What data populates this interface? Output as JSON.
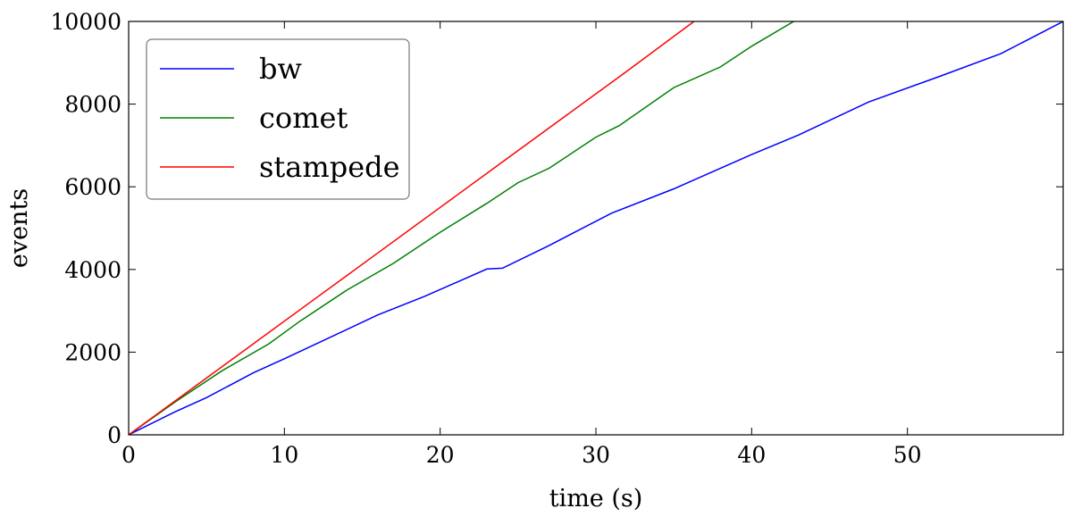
{
  "chart_data": {
    "type": "line",
    "title": "",
    "xlabel": "time (s)",
    "ylabel": "events",
    "xlim": [
      0,
      60
    ],
    "ylim": [
      0,
      10000
    ],
    "xticks": [
      0,
      10,
      20,
      30,
      40,
      50
    ],
    "xtick_labels": [
      "0",
      "10",
      "20",
      "30",
      "40",
      "50"
    ],
    "yticks": [
      0,
      2000,
      4000,
      6000,
      8000,
      10000
    ],
    "ytick_labels": [
      "0",
      "2000",
      "4000",
      "6000",
      "8000",
      "10000"
    ],
    "grid": false,
    "legend_position": "top-left",
    "series": [
      {
        "name": "bw",
        "color": "#0000ff",
        "x": [
          0,
          3,
          5,
          8,
          10,
          13,
          16,
          19,
          23,
          24,
          27,
          31,
          35,
          40,
          43,
          47.5,
          52,
          56,
          60
        ],
        "y": [
          0,
          560,
          900,
          1500,
          1840,
          2370,
          2900,
          3350,
          4010,
          4030,
          4580,
          5360,
          5950,
          6780,
          7250,
          8050,
          8660,
          9220,
          10000
        ]
      },
      {
        "name": "comet",
        "color": "#008000",
        "x": [
          0,
          3,
          6,
          9,
          11,
          14,
          17,
          20,
          23,
          25,
          27,
          30,
          31.5,
          35,
          38,
          40,
          42.7
        ],
        "y": [
          0,
          800,
          1550,
          2200,
          2750,
          3500,
          4150,
          4900,
          5600,
          6100,
          6450,
          7200,
          7480,
          8400,
          8900,
          9400,
          10000
        ]
      },
      {
        "name": "stampede",
        "color": "#ff0000",
        "x": [
          0,
          4,
          8,
          12,
          16,
          20,
          24,
          28,
          32,
          36.3
        ],
        "y": [
          0,
          1100,
          2200,
          3300,
          4400,
          5500,
          6600,
          7700,
          8800,
          10000
        ]
      }
    ]
  }
}
